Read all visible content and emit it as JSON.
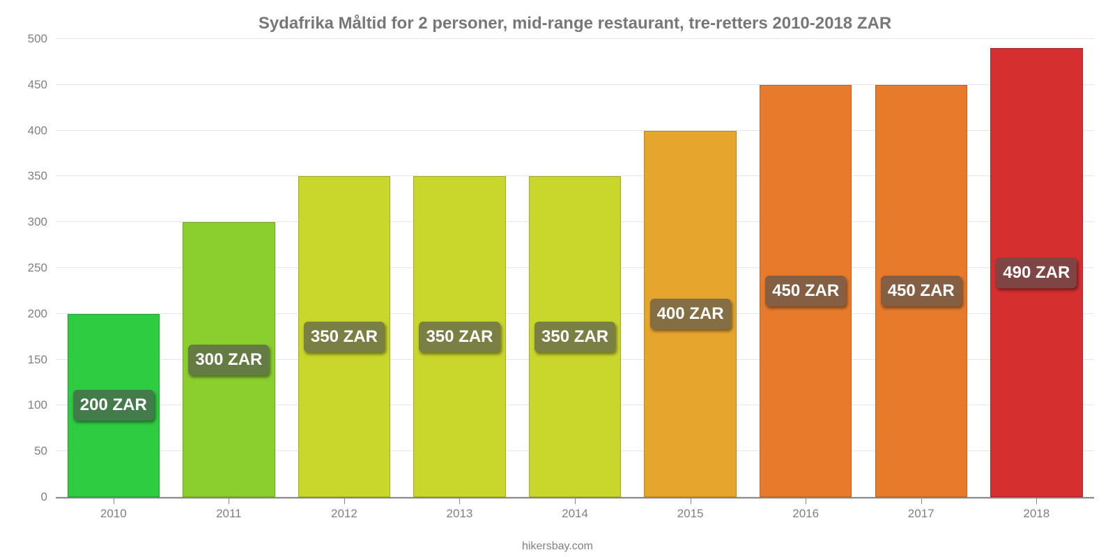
{
  "chart": {
    "type": "bar",
    "title": "Sydafrika Måltid for 2 personer, mid-range restaurant, tre-retters 2010-2018 ZAR",
    "title_fontsize": 24,
    "title_color": "#777777",
    "attribution": "hikersbay.com",
    "attribution_fontsize": 16,
    "attribution_color": "#808080",
    "background_color": "#ffffff",
    "grid_color": "#e6e6e6",
    "axis_color": "#888888",
    "tick_label_color": "#808080",
    "tick_label_fontsize": 17,
    "ylim": [
      0,
      500
    ],
    "ytick_step": 50,
    "yticks": [
      0,
      50,
      100,
      150,
      200,
      250,
      300,
      350,
      400,
      450,
      500
    ],
    "categories": [
      "2010",
      "2011",
      "2012",
      "2013",
      "2014",
      "2015",
      "2016",
      "2017",
      "2018"
    ],
    "values": [
      200,
      300,
      350,
      350,
      350,
      400,
      450,
      450,
      490
    ],
    "value_labels": [
      "200 ZAR",
      "300 ZAR",
      "350 ZAR",
      "350 ZAR",
      "350 ZAR",
      "400 ZAR",
      "450 ZAR",
      "450 ZAR",
      "490 ZAR"
    ],
    "bar_colors": [
      "#2ecc40",
      "#8bcf2e",
      "#c9d62b",
      "#c9d62b",
      "#c9d62b",
      "#e6a62d",
      "#e77b2b",
      "#e77b2b",
      "#d62f2f"
    ],
    "bar_border_colors": [
      "#1e9e2f",
      "#6da823",
      "#a2ac21",
      "#a2ac21",
      "#a2ac21",
      "#bb8523",
      "#bc6222",
      "#bc6222",
      "#aa2525"
    ],
    "value_label_fontsize": 24,
    "value_label_bg": "rgba(80,80,80,0.65)",
    "value_label_color": "#ffffff",
    "bar_width_ratio": 0.8
  }
}
